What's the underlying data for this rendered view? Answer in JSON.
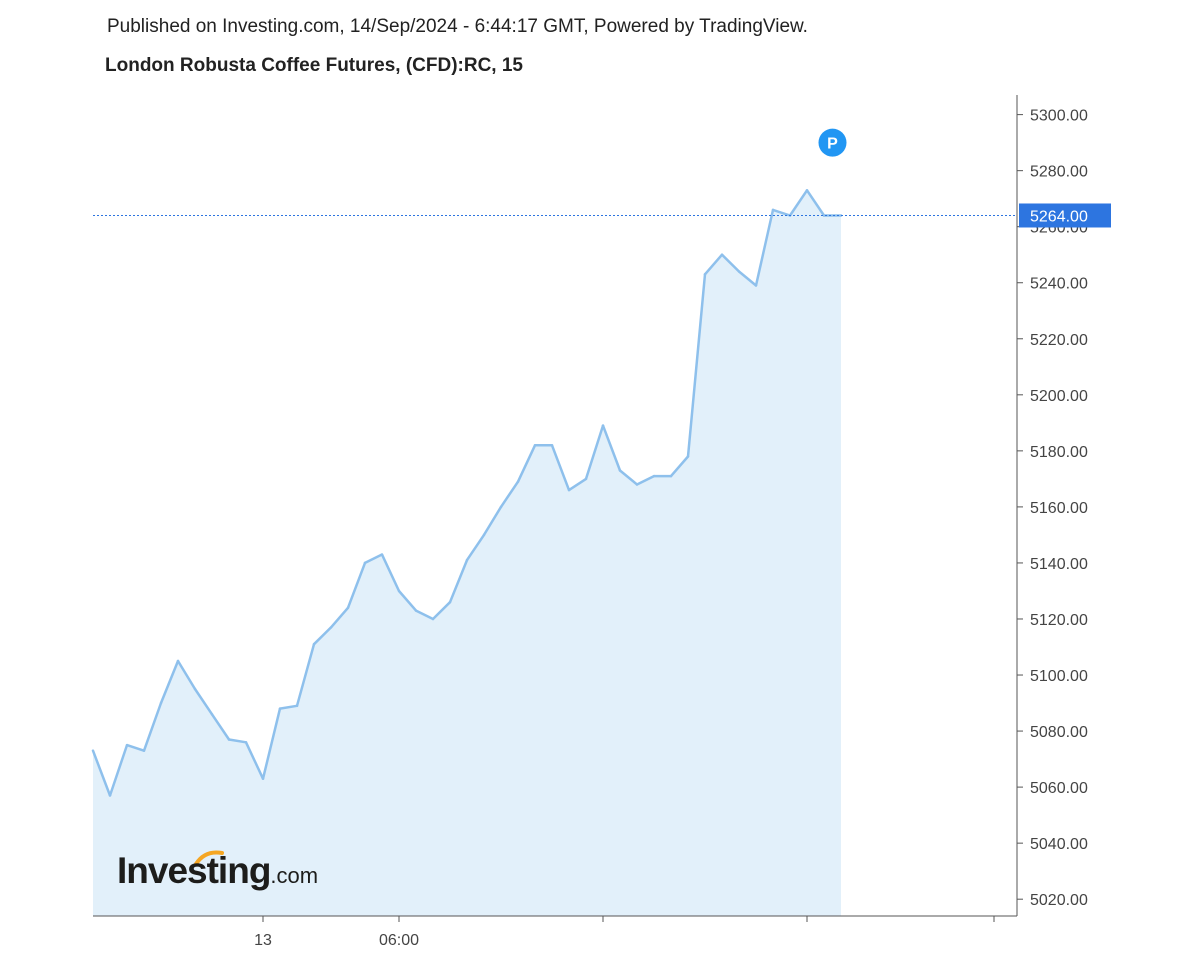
{
  "header": {
    "published": "Published on Investing.com, 14/Sep/2024 - 6:44:17 GMT, Powered by TradingView.",
    "title": "London Robusta Coffee Futures, (CFD):RC, 15"
  },
  "logo": {
    "main": "Investing",
    "domain": ".com",
    "mark_color": "#f5a623"
  },
  "colors": {
    "line": "#8ec0ec",
    "area": "#e2f0fa",
    "price_tag": "#2d75e0",
    "marker": "#2196f3",
    "axis": "#555555"
  },
  "chart_data": {
    "type": "area",
    "title": "London Robusta Coffee Futures, (CFD):RC, 15",
    "ylim": [
      5014,
      5307
    ],
    "y_ticks": [
      5020,
      5040,
      5060,
      5080,
      5100,
      5120,
      5140,
      5160,
      5180,
      5200,
      5220,
      5240,
      5260,
      5280,
      5300
    ],
    "y_tick_labels": [
      "5020.00",
      "5040.00",
      "5060.00",
      "5080.00",
      "5100.00",
      "5120.00",
      "5140.00",
      "5160.00",
      "5180.00",
      "5200.00",
      "5220.00",
      "5240.00",
      "5260.00",
      "5280.00",
      "5300.00"
    ],
    "x_labels": [
      "13",
      "06:00",
      "",
      "",
      ""
    ],
    "x_label_index": [
      10,
      18,
      30,
      42,
      53
    ],
    "last_price": 5264,
    "last_price_label": "5264.00",
    "marker_label": "P",
    "marker_index": 43.5,
    "marker_value": 5290,
    "grid": false,
    "values": [
      5073,
      5057,
      5075,
      5073,
      5090,
      5105,
      5095,
      5086,
      5077,
      5076,
      5063,
      5088,
      5089,
      5111,
      5117,
      5124,
      5140,
      5143,
      5130,
      5123,
      5120,
      5126,
      5141,
      5150,
      5160,
      5169,
      5182,
      5182,
      5166,
      5170,
      5189,
      5173,
      5168,
      5171,
      5171,
      5178,
      5243,
      5250,
      5244,
      5239,
      5266,
      5264,
      5273,
      5264,
      5264
    ]
  }
}
